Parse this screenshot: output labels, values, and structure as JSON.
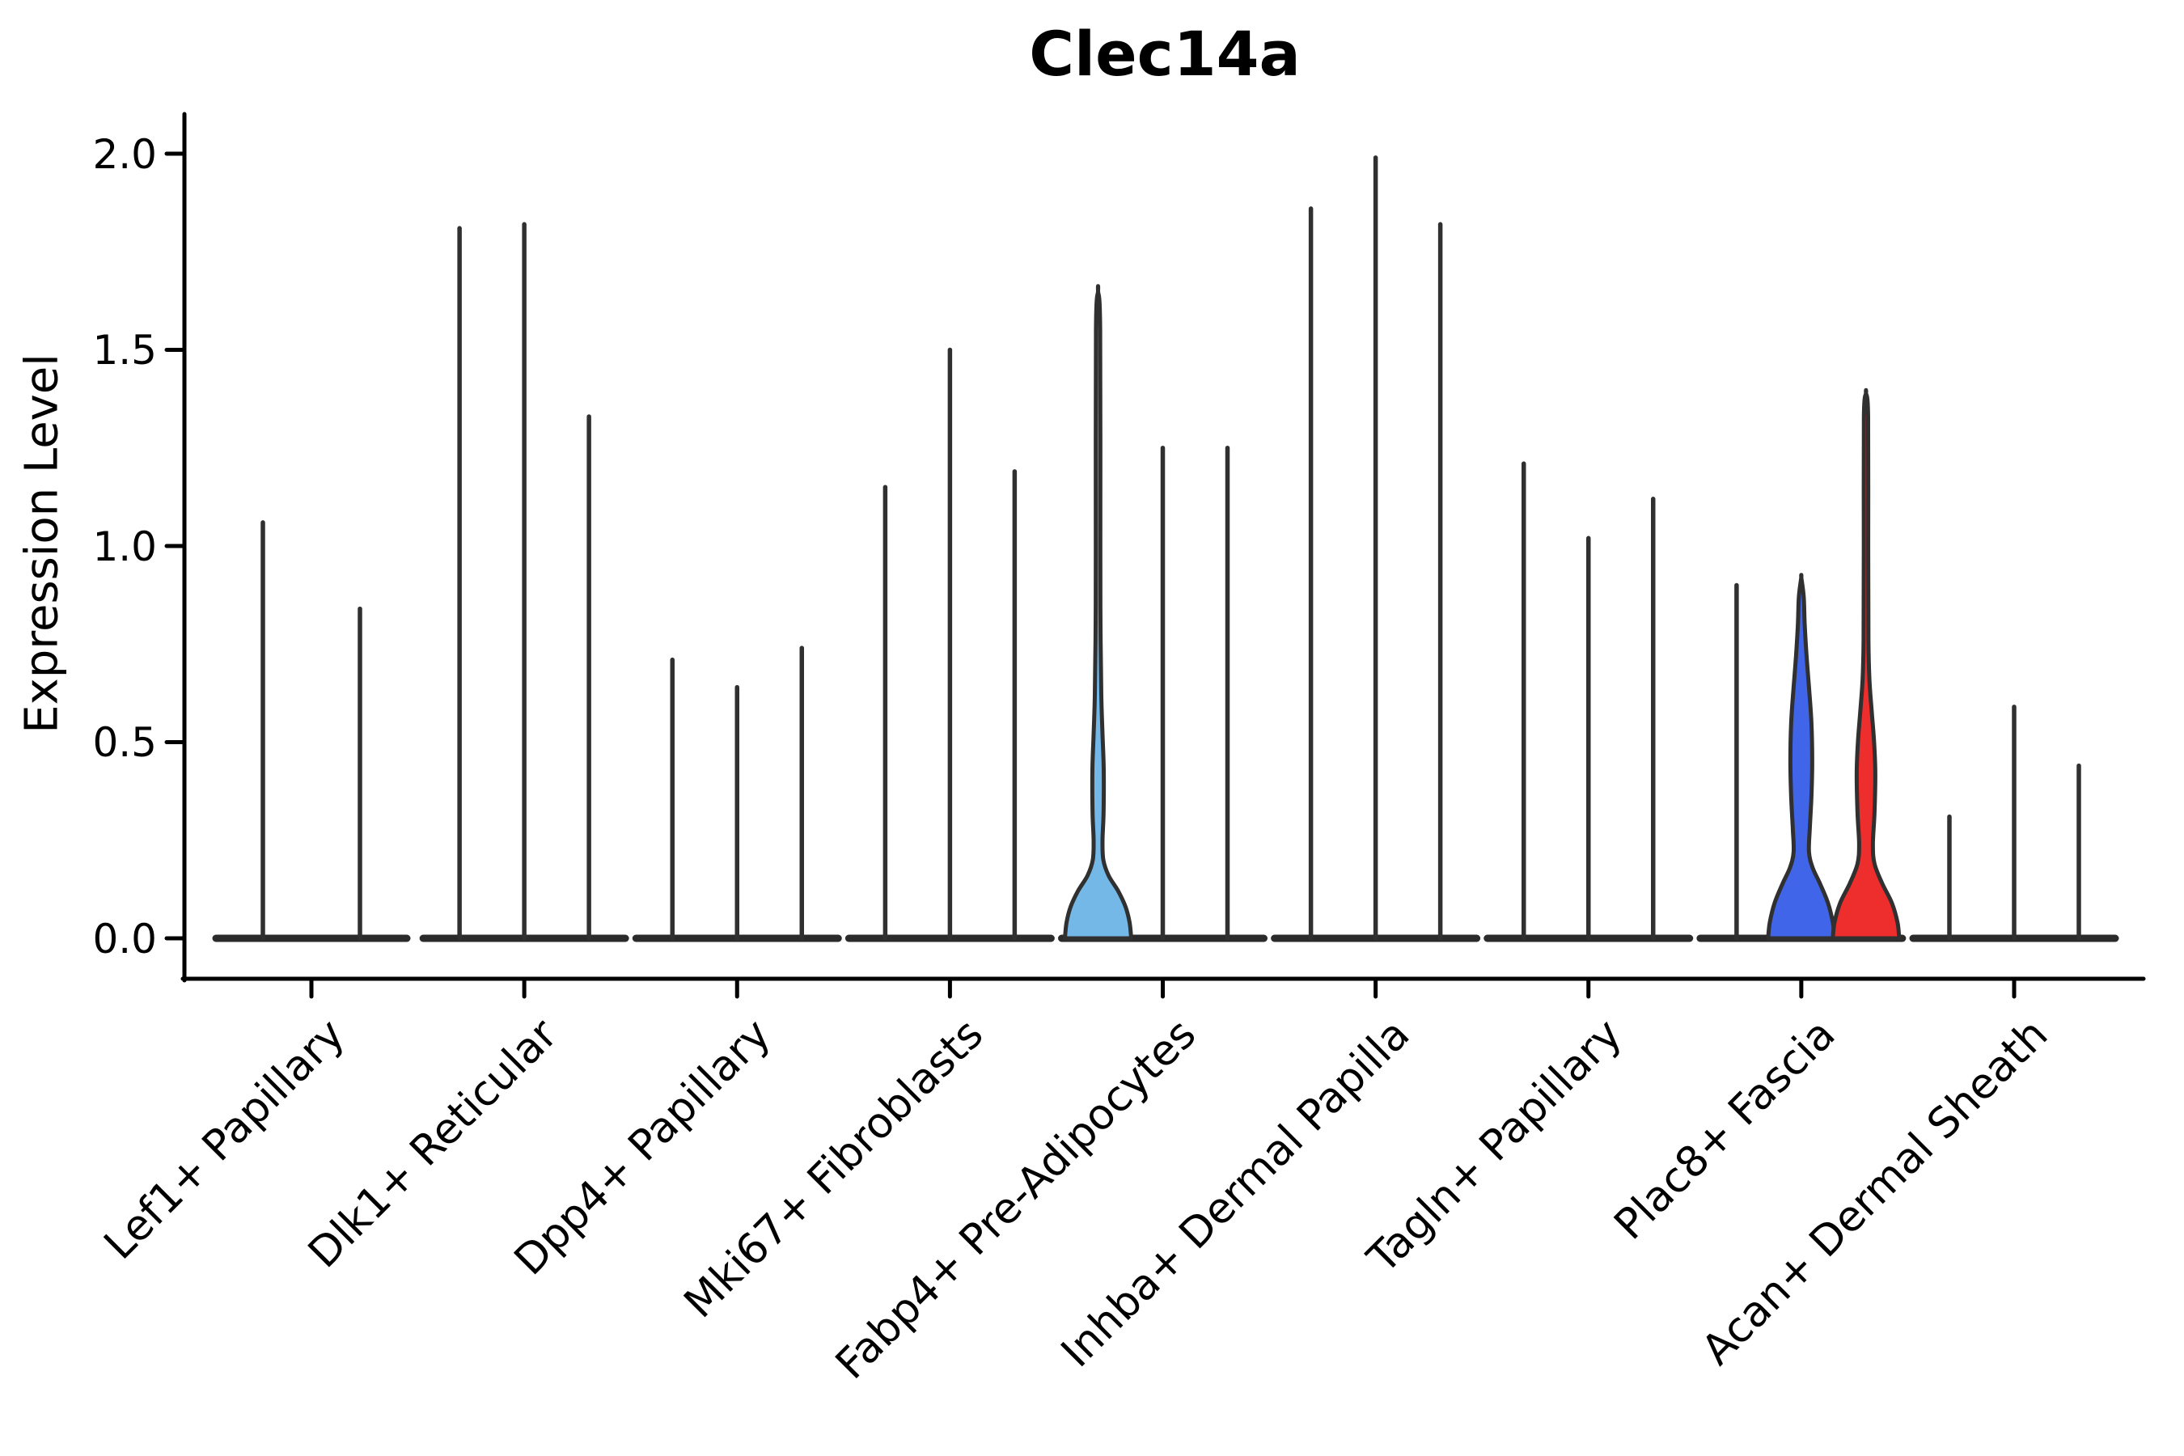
{
  "chart_data": {
    "type": "violin",
    "title": "Clec14a",
    "ylabel": "Expression Level",
    "ylim": [
      -0.1,
      2.1
    ],
    "yticks": [
      0.0,
      0.5,
      1.0,
      1.5,
      2.0
    ],
    "ytick_labels": [
      "0.0",
      "0.5",
      "1.0",
      "1.5",
      "2.0"
    ],
    "grid": false,
    "legend": "none",
    "colors": {
      "spike": "#303030",
      "baseline": "#2b2b2b",
      "axis": "#000000",
      "lightblue": "#74B8E8",
      "blue": "#4065E8",
      "red": "#EE2D2D"
    },
    "groups": [
      {
        "label": "Lef1+ Papillary",
        "violins": [
          {
            "kind": "spike",
            "height": 1.06
          },
          {
            "kind": "spike",
            "height": 0.84
          }
        ]
      },
      {
        "label": "Dlk1+ Reticular",
        "violins": [
          {
            "kind": "spike",
            "height": 1.81
          },
          {
            "kind": "spike",
            "height": 1.82
          },
          {
            "kind": "spike",
            "height": 1.33
          }
        ]
      },
      {
        "label": "Dpp4+ Papillary",
        "violins": [
          {
            "kind": "spike",
            "height": 0.71
          },
          {
            "kind": "spike",
            "height": 0.64
          },
          {
            "kind": "spike",
            "height": 0.74
          }
        ]
      },
      {
        "label": "Mki67+ Fibroblasts",
        "violins": [
          {
            "kind": "spike",
            "height": 1.15
          },
          {
            "kind": "spike",
            "height": 1.5
          },
          {
            "kind": "spike",
            "height": 1.19
          }
        ]
      },
      {
        "label": "Fabp4+ Pre-Adipocytes",
        "violins": [
          {
            "kind": "violin",
            "height": 1.65,
            "color_key": "lightblue",
            "profile": [
              [
                0,
                41
              ],
              [
                0.04,
                39
              ],
              [
                0.08,
                34
              ],
              [
                0.12,
                25
              ],
              [
                0.16,
                13
              ],
              [
                0.2,
                6.5
              ],
              [
                0.25,
                5.5
              ],
              [
                0.32,
                6.8
              ],
              [
                0.43,
                7
              ],
              [
                0.52,
                5.5
              ],
              [
                0.62,
                4
              ],
              [
                0.8,
                3
              ],
              [
                1.0,
                2.8
              ],
              [
                1.55,
                2.6
              ],
              [
                1.65,
                0
              ]
            ]
          },
          {
            "kind": "spike",
            "height": 1.25
          },
          {
            "kind": "spike",
            "height": 1.25
          }
        ]
      },
      {
        "label": "Inhba+ Dermal Papilla",
        "violins": [
          {
            "kind": "spike",
            "height": 1.86
          },
          {
            "kind": "spike",
            "height": 1.99
          },
          {
            "kind": "spike",
            "height": 1.82
          }
        ]
      },
      {
        "label": "Tagln+ Papillary",
        "violins": [
          {
            "kind": "spike",
            "height": 1.21
          },
          {
            "kind": "spike",
            "height": 1.02
          },
          {
            "kind": "spike",
            "height": 1.12
          }
        ]
      },
      {
        "label": "Plac8+ Fascia",
        "violins": [
          {
            "kind": "spike",
            "height": 0.9
          },
          {
            "kind": "violin",
            "height": 0.92,
            "color_key": "blue",
            "profile": [
              [
                0,
                41
              ],
              [
                0.04,
                39
              ],
              [
                0.09,
                33
              ],
              [
                0.14,
                23
              ],
              [
                0.18,
                14
              ],
              [
                0.22,
                9.5
              ],
              [
                0.28,
                10.5
              ],
              [
                0.36,
                12.5
              ],
              [
                0.45,
                13.5
              ],
              [
                0.55,
                12.5
              ],
              [
                0.64,
                9.5
              ],
              [
                0.72,
                6.5
              ],
              [
                0.8,
                4.2
              ],
              [
                0.87,
                3
              ],
              [
                0.92,
                0
              ]
            ]
          },
          {
            "kind": "violin",
            "height": 1.39,
            "color_key": "red",
            "profile": [
              [
                0,
                41
              ],
              [
                0.04,
                39
              ],
              [
                0.09,
                32
              ],
              [
                0.14,
                20
              ],
              [
                0.19,
                10.5
              ],
              [
                0.24,
                8.5
              ],
              [
                0.32,
                10.5
              ],
              [
                0.42,
                11.5
              ],
              [
                0.5,
                10
              ],
              [
                0.58,
                7
              ],
              [
                0.66,
                4.2
              ],
              [
                0.76,
                3
              ],
              [
                1.0,
                2.7
              ],
              [
                1.33,
                2.6
              ],
              [
                1.39,
                0
              ]
            ]
          }
        ]
      },
      {
        "label": "Acan+ Dermal Sheath",
        "violins": [
          {
            "kind": "spike",
            "height": 0.31
          },
          {
            "kind": "spike",
            "height": 0.59
          },
          {
            "kind": "spike",
            "height": 0.44
          }
        ]
      }
    ]
  }
}
